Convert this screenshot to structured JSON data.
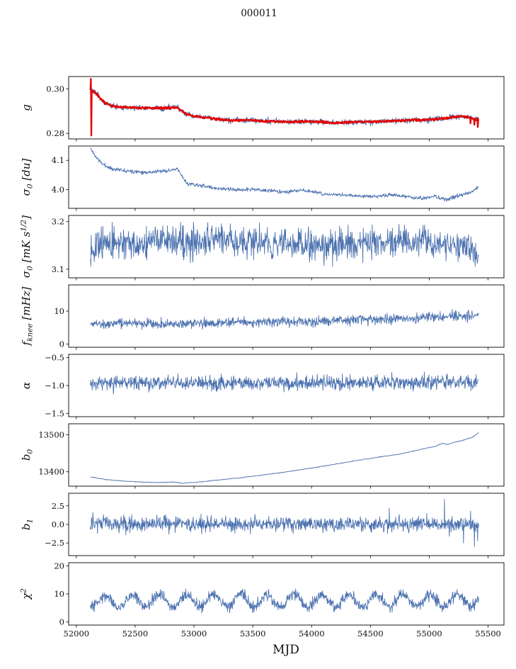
{
  "title": "000011",
  "xlabel": "MJD",
  "chart_data": {
    "type": "line",
    "grid": false,
    "legend": null,
    "x_axis": {
      "label": "MJD",
      "lim": [
        51935,
        55635
      ],
      "data_range": [
        52120,
        55420
      ],
      "ticks": [
        52000,
        52500,
        53000,
        53500,
        54000,
        54500,
        55000,
        55500
      ],
      "tick_labels": [
        "52000",
        "52500",
        "53000",
        "53500",
        "54000",
        "54500",
        "55000",
        "55500"
      ]
    },
    "line_color": "#4c72b0",
    "highlight_color": "#e50000",
    "panels": [
      {
        "name": "gain",
        "ylabel": "g",
        "ylim": [
          0.2775,
          0.3055
        ],
        "yticks": [
          [
            0.3,
            "0.30"
          ],
          [
            0.28,
            "0.28"
          ]
        ],
        "series": [
          {
            "name": "gain-raw",
            "color": "#4c72b0",
            "width": 0.9,
            "n": 1100,
            "noise": 0.00065,
            "seed": 3,
            "anchors": [
              [
                52120,
                0.2995
              ],
              [
                52160,
                0.2983
              ],
              [
                52220,
                0.2946
              ],
              [
                52300,
                0.2921
              ],
              [
                52450,
                0.2916
              ],
              [
                52600,
                0.2913
              ],
              [
                52750,
                0.2914
              ],
              [
                52860,
                0.2916
              ],
              [
                52920,
                0.289
              ],
              [
                53000,
                0.2876
              ],
              [
                53150,
                0.2868
              ],
              [
                53300,
                0.2858
              ],
              [
                53450,
                0.286
              ],
              [
                53600,
                0.2855
              ],
              [
                53800,
                0.2852
              ],
              [
                54000,
                0.2853
              ],
              [
                54200,
                0.2847
              ],
              [
                54400,
                0.2852
              ],
              [
                54600,
                0.2853
              ],
              [
                54800,
                0.2859
              ],
              [
                55000,
                0.2861
              ],
              [
                55150,
                0.2869
              ],
              [
                55280,
                0.2877
              ],
              [
                55360,
                0.2868
              ],
              [
                55420,
                0.2863
              ]
            ],
            "spikes": [
              [
                52123,
                0.304
              ]
            ]
          },
          {
            "name": "gain-fit",
            "color": "#e50000",
            "width": 2.3,
            "n": 900,
            "noise": 0.00025,
            "seed": 7,
            "anchors": [
              [
                52120,
                0.2995
              ],
              [
                52160,
                0.2983
              ],
              [
                52220,
                0.2946
              ],
              [
                52300,
                0.2921
              ],
              [
                52450,
                0.2916
              ],
              [
                52600,
                0.2913
              ],
              [
                52750,
                0.2914
              ],
              [
                52860,
                0.2916
              ],
              [
                52920,
                0.289
              ],
              [
                53000,
                0.2876
              ],
              [
                53150,
                0.2868
              ],
              [
                53300,
                0.2858
              ],
              [
                53450,
                0.286
              ],
              [
                53600,
                0.2855
              ],
              [
                53800,
                0.2852
              ],
              [
                54000,
                0.2853
              ],
              [
                54200,
                0.2847
              ],
              [
                54400,
                0.2852
              ],
              [
                54600,
                0.2853
              ],
              [
                54800,
                0.2859
              ],
              [
                55000,
                0.2861
              ],
              [
                55150,
                0.2869
              ],
              [
                55280,
                0.2877
              ],
              [
                55360,
                0.2868
              ],
              [
                55420,
                0.2863
              ]
            ],
            "spikes": [
              [
                52122,
                0.3045
              ],
              [
                52128,
                0.279
              ],
              [
                55350,
                0.2845
              ],
              [
                55385,
                0.2838
              ],
              [
                55412,
                0.2828
              ]
            ]
          }
        ]
      },
      {
        "name": "sigma0-du",
        "ylabel": "σ_{0} [du]",
        "ylim": [
          3.936,
          4.149
        ],
        "yticks": [
          [
            4.1,
            "4.1"
          ],
          [
            4.0,
            "4.0"
          ]
        ],
        "series": [
          {
            "name": "sigma0-du",
            "color": "#4c72b0",
            "width": 0.9,
            "n": 1000,
            "noise": 0.0032,
            "seed": 11,
            "anchors": [
              [
                52120,
                4.142
              ],
              [
                52160,
                4.115
              ],
              [
                52220,
                4.088
              ],
              [
                52300,
                4.071
              ],
              [
                52450,
                4.064
              ],
              [
                52600,
                4.059
              ],
              [
                52750,
                4.064
              ],
              [
                52860,
                4.069
              ],
              [
                52940,
                4.021
              ],
              [
                53050,
                4.014
              ],
              [
                53200,
                4.004
              ],
              [
                53350,
                3.999
              ],
              [
                53500,
                4.001
              ],
              [
                53650,
                3.996
              ],
              [
                53800,
                3.991
              ],
              [
                53900,
                3.999
              ],
              [
                54000,
                3.994
              ],
              [
                54100,
                3.984
              ],
              [
                54250,
                3.982
              ],
              [
                54400,
                3.979
              ],
              [
                54550,
                3.977
              ],
              [
                54700,
                3.982
              ],
              [
                54850,
                3.974
              ],
              [
                54950,
                3.969
              ],
              [
                55050,
                3.977
              ],
              [
                55150,
                3.966
              ],
              [
                55250,
                3.979
              ],
              [
                55350,
                3.989
              ],
              [
                55420,
                4.009
              ]
            ]
          }
        ]
      },
      {
        "name": "sigma0-mks",
        "ylabel": "σ_{0} [mK s^{1/2}]",
        "ylim": [
          3.082,
          3.213
        ],
        "yticks": [
          [
            3.2,
            "3.2"
          ],
          [
            3.1,
            "3.1"
          ]
        ],
        "series": [
          {
            "name": "sigma0-mks",
            "color": "#4c72b0",
            "width": 0.9,
            "n": 1000,
            "noise": 0.016,
            "seed": 13,
            "anchors": [
              [
                52120,
                3.148
              ],
              [
                52250,
                3.152
              ],
              [
                52400,
                3.158
              ],
              [
                52550,
                3.15
              ],
              [
                52700,
                3.162
              ],
              [
                52850,
                3.158
              ],
              [
                53000,
                3.156
              ],
              [
                53150,
                3.168
              ],
              [
                53300,
                3.162
              ],
              [
                53500,
                3.158
              ],
              [
                53650,
                3.15
              ],
              [
                53800,
                3.152
              ],
              [
                54000,
                3.154
              ],
              [
                54200,
                3.15
              ],
              [
                54400,
                3.158
              ],
              [
                54600,
                3.155
              ],
              [
                54800,
                3.158
              ],
              [
                55000,
                3.157
              ],
              [
                55150,
                3.152
              ],
              [
                55300,
                3.148
              ],
              [
                55420,
                3.128
              ]
            ]
          }
        ]
      },
      {
        "name": "fknee",
        "ylabel": "f_{knee} [mHz]",
        "ylim": [
          -1,
          18
        ],
        "yticks": [
          [
            10,
            "10"
          ],
          [
            0,
            "0"
          ]
        ],
        "series": [
          {
            "name": "fknee",
            "color": "#4c72b0",
            "width": 0.9,
            "n": 1100,
            "noise": 0.75,
            "seed": 17,
            "anchors": [
              [
                52120,
                6.3
              ],
              [
                52500,
                6.1
              ],
              [
                52900,
                6.2
              ],
              [
                53300,
                6.4
              ],
              [
                53700,
                6.7
              ],
              [
                54100,
                7.0
              ],
              [
                54500,
                7.4
              ],
              [
                54900,
                8.0
              ],
              [
                55200,
                8.5
              ],
              [
                55420,
                8.7
              ]
            ]
          }
        ]
      },
      {
        "name": "alpha",
        "ylabel": "α",
        "ylim": [
          -1.56,
          -0.44
        ],
        "yticks": [
          [
            -0.5,
            "−0.5"
          ],
          [
            -1.0,
            "−1.0"
          ],
          [
            -1.5,
            "−1.5"
          ]
        ],
        "series": [
          {
            "name": "alpha",
            "color": "#4c72b0",
            "width": 0.9,
            "n": 1100,
            "noise": 0.065,
            "seed": 19,
            "anchors": [
              [
                52120,
                -0.96
              ],
              [
                53000,
                -0.95
              ],
              [
                54000,
                -0.96
              ],
              [
                55420,
                -0.94
              ]
            ]
          }
        ]
      },
      {
        "name": "b0",
        "ylabel": "b_{0}",
        "ylim": [
          13361,
          13530
        ],
        "yticks": [
          [
            13500,
            "13500"
          ],
          [
            13400,
            "13400"
          ]
        ],
        "series": [
          {
            "name": "b0",
            "color": "#4c72b0",
            "width": 0.9,
            "n": 800,
            "noise": 0.5,
            "seed": 23,
            "anchors": [
              [
                52120,
                13386
              ],
              [
                52250,
                13379
              ],
              [
                52400,
                13375
              ],
              [
                52550,
                13372
              ],
              [
                52700,
                13371
              ],
              [
                52820,
                13372
              ],
              [
                52900,
                13369
              ],
              [
                53000,
                13371
              ],
              [
                53100,
                13374
              ],
              [
                53250,
                13379
              ],
              [
                53400,
                13384
              ],
              [
                53550,
                13390
              ],
              [
                53700,
                13396
              ],
              [
                53850,
                13403
              ],
              [
                54000,
                13410
              ],
              [
                54150,
                13418
              ],
              [
                54300,
                13426
              ],
              [
                54450,
                13434
              ],
              [
                54600,
                13441
              ],
              [
                54750,
                13448
              ],
              [
                54850,
                13455
              ],
              [
                54950,
                13462
              ],
              [
                55050,
                13469
              ],
              [
                55110,
                13477
              ],
              [
                55150,
                13474
              ],
              [
                55220,
                13480
              ],
              [
                55300,
                13487
              ],
              [
                55370,
                13494
              ],
              [
                55420,
                13506
              ]
            ]
          }
        ]
      },
      {
        "name": "b1",
        "ylabel": "b_{1}",
        "ylim": [
          -4.2,
          4.2
        ],
        "yticks": [
          [
            2.5,
            "2.5"
          ],
          [
            0.0,
            "0.0"
          ],
          [
            -2.5,
            "−2.5"
          ]
        ],
        "series": [
          {
            "name": "b1",
            "color": "#4c72b0",
            "width": 0.9,
            "n": 1100,
            "noise": 0.5,
            "seed": 29,
            "anchors": [
              [
                52120,
                0.25
              ],
              [
                52300,
                0.05
              ],
              [
                55420,
                0.0
              ]
            ],
            "spikes": [
              [
                52140,
                1.6
              ],
              [
                52180,
                -1.2
              ],
              [
                52230,
                1.3
              ],
              [
                52420,
                -1.4
              ],
              [
                52760,
                1.3
              ],
              [
                53060,
                1.4
              ],
              [
                53480,
                -1.3
              ],
              [
                54660,
                2.2
              ],
              [
                54980,
                1.5
              ],
              [
                55130,
                3.4
              ],
              [
                55170,
                -1.6
              ],
              [
                55290,
                -2.5
              ],
              [
                55350,
                1.8
              ],
              [
                55385,
                -3.0
              ],
              [
                55410,
                -2.2
              ]
            ]
          }
        ]
      },
      {
        "name": "chi2",
        "ylabel": "χ^{2}",
        "ylim": [
          -1.1,
          21.1
        ],
        "yticks": [
          [
            20,
            "20"
          ],
          [
            10,
            "10"
          ],
          [
            0,
            "0"
          ]
        ],
        "series": [
          {
            "name": "chi2",
            "color": "#4c72b0",
            "width": 0.9,
            "n": 1100,
            "noise": 1.0,
            "seed": 31,
            "anchors": [
              [
                52120,
                7.4
              ],
              [
                55420,
                7.8
              ]
            ],
            "sin": [
              2.2,
              230,
              0.7
            ],
            "clip": [
              3.2,
              19.5
            ]
          }
        ]
      }
    ]
  }
}
